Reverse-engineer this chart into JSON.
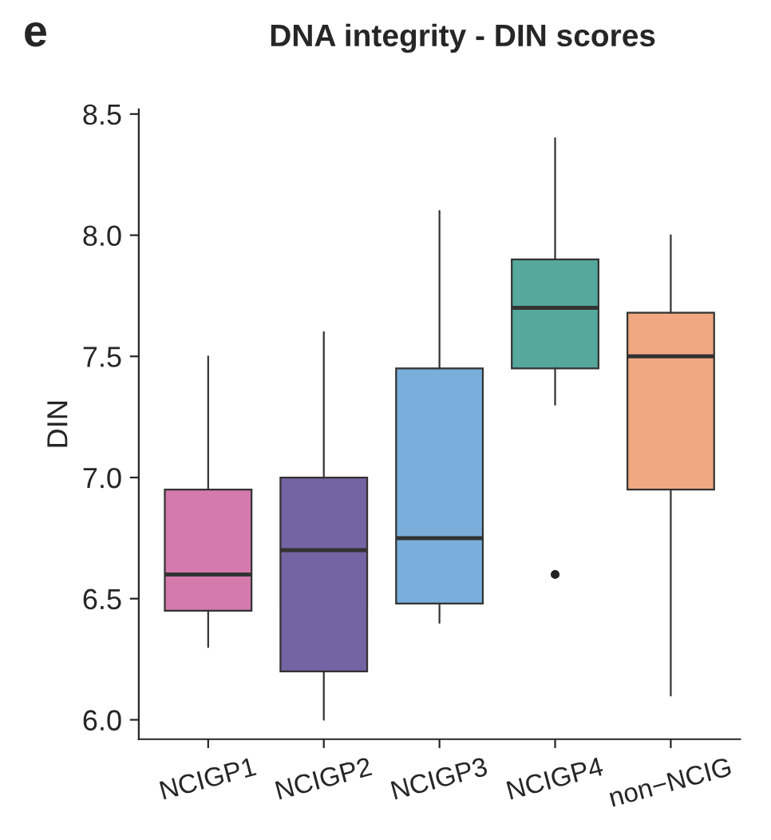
{
  "chart_data": {
    "type": "box",
    "title": "DNA integrity - DIN scores",
    "ylabel": "DIN",
    "annotations": [
      "e"
    ],
    "categories": [
      "NCIGP1",
      "NCIGP2",
      "NCIGP3",
      "NCIGP4",
      "non−NCIG"
    ],
    "colors": [
      "#d47aad",
      "#7464a3",
      "#7aaedb",
      "#55a89b",
      "#f0a882"
    ],
    "boxes": [
      {
        "low": 6.3,
        "q1": 6.45,
        "median": 6.6,
        "q3": 6.95,
        "high": 7.5
      },
      {
        "low": 6.0,
        "q1": 6.2,
        "median": 6.7,
        "q3": 7.0,
        "high": 7.6
      },
      {
        "low": 6.4,
        "q1": 6.48,
        "median": 6.75,
        "q3": 7.45,
        "high": 8.1
      },
      {
        "low": 7.3,
        "q1": 7.45,
        "median": 7.7,
        "q3": 7.9,
        "high": 8.4,
        "outliers": [
          6.6
        ]
      },
      {
        "low": 6.1,
        "q1": 6.95,
        "median": 7.5,
        "q3": 7.68,
        "high": 8.0
      }
    ],
    "ylim": [
      5.92,
      8.52
    ],
    "yticks": [
      {
        "value": 6.0,
        "label": "6.0"
      },
      {
        "value": 6.5,
        "label": "6.5"
      },
      {
        "value": 7.0,
        "label": "7.0"
      },
      {
        "value": 7.5,
        "label": "7.5"
      },
      {
        "value": 8.0,
        "label": "8.0"
      },
      {
        "value": 8.5,
        "label": "8.5"
      }
    ],
    "grid": false,
    "legend": false
  }
}
